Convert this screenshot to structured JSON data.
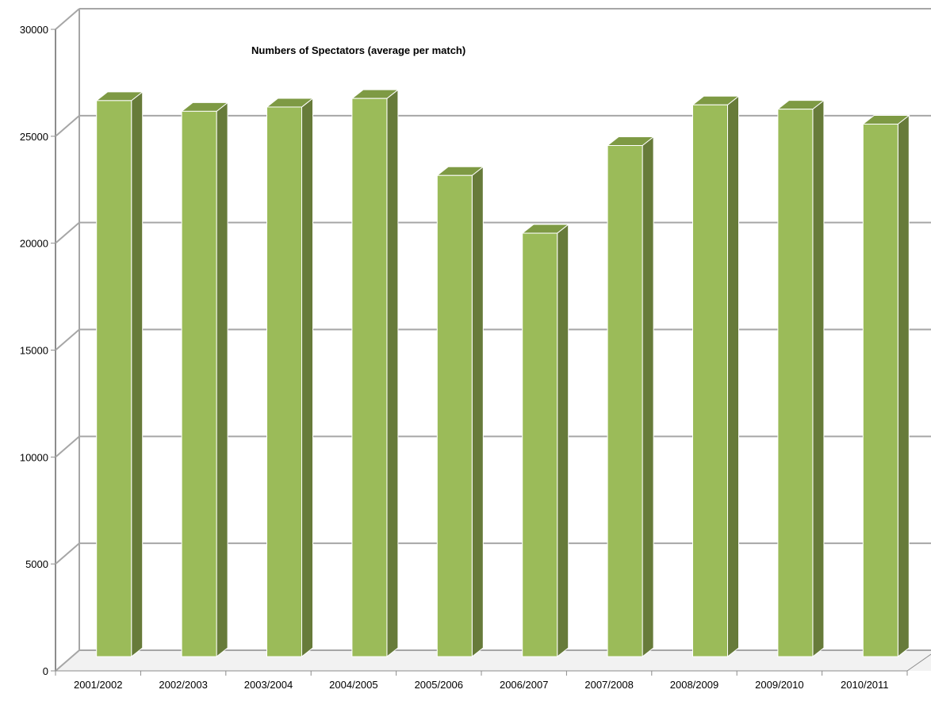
{
  "chart_data": {
    "type": "bar",
    "title": "Numbers of Spectators (average per match)",
    "xlabel": "",
    "ylabel": "",
    "categories": [
      "2001/2002",
      "2002/2003",
      "2003/2004",
      "2004/2005",
      "2005/2006",
      "2006/2007",
      "2007/2008",
      "2008/2009",
      "2009/2010",
      "2010/2011"
    ],
    "values": [
      26000,
      25500,
      25700,
      26100,
      22500,
      19800,
      23900,
      25800,
      25600,
      24900
    ],
    "ylim": [
      0,
      30000
    ],
    "yticks": [
      "0",
      "5000",
      "10000",
      "15000",
      "20000",
      "25000",
      "30000"
    ],
    "grid": true,
    "legend": "none",
    "style": "3d-column",
    "colors": {
      "bar_front": "#9bbb59",
      "bar_side": "#677b3a",
      "bar_top": "#7e9a44",
      "grid": "#a6a6a6",
      "axis": "#8c8c8c"
    }
  }
}
